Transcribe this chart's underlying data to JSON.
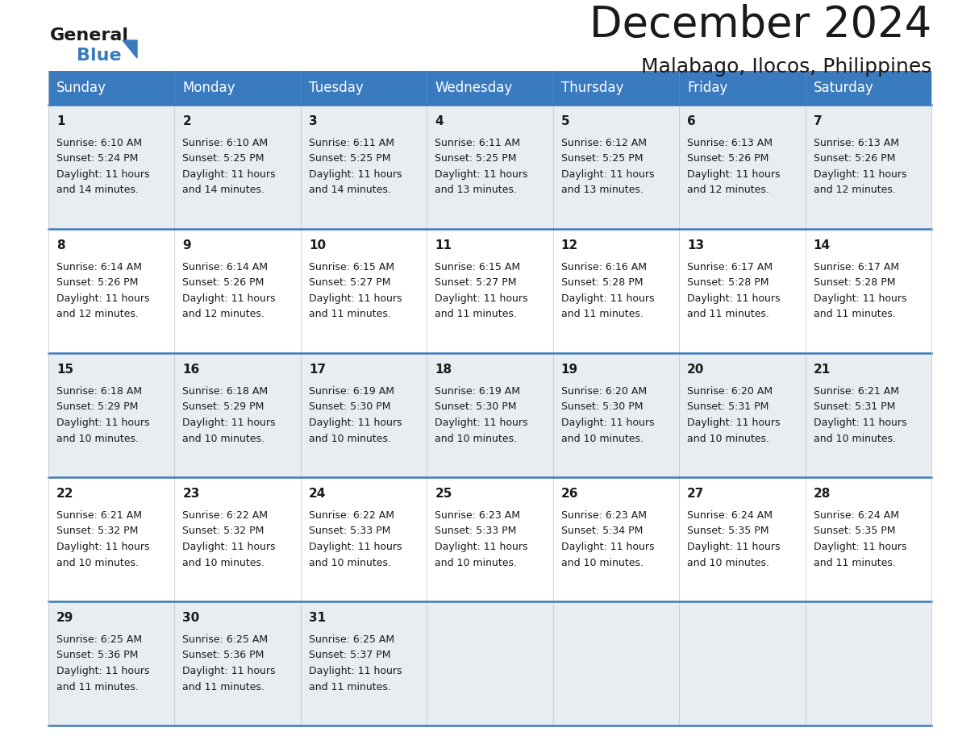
{
  "title": "December 2024",
  "subtitle": "Malabago, Ilocos, Philippines",
  "header_color": "#3a7abf",
  "header_text_color": "#ffffff",
  "days_of_week": [
    "Sunday",
    "Monday",
    "Tuesday",
    "Wednesday",
    "Thursday",
    "Friday",
    "Saturday"
  ],
  "cell_bg_light": "#e8edf2",
  "cell_bg_white": "#ffffff",
  "row_divider_color": "#3a7abf",
  "grid_color": "#c0c0c0",
  "calendar": [
    [
      {
        "day": 1,
        "sunrise": "6:10 AM",
        "sunset": "5:24 PM",
        "daylight_hours": 11,
        "daylight_minutes": 14
      },
      {
        "day": 2,
        "sunrise": "6:10 AM",
        "sunset": "5:25 PM",
        "daylight_hours": 11,
        "daylight_minutes": 14
      },
      {
        "day": 3,
        "sunrise": "6:11 AM",
        "sunset": "5:25 PM",
        "daylight_hours": 11,
        "daylight_minutes": 14
      },
      {
        "day": 4,
        "sunrise": "6:11 AM",
        "sunset": "5:25 PM",
        "daylight_hours": 11,
        "daylight_minutes": 13
      },
      {
        "day": 5,
        "sunrise": "6:12 AM",
        "sunset": "5:25 PM",
        "daylight_hours": 11,
        "daylight_minutes": 13
      },
      {
        "day": 6,
        "sunrise": "6:13 AM",
        "sunset": "5:26 PM",
        "daylight_hours": 11,
        "daylight_minutes": 12
      },
      {
        "day": 7,
        "sunrise": "6:13 AM",
        "sunset": "5:26 PM",
        "daylight_hours": 11,
        "daylight_minutes": 12
      }
    ],
    [
      {
        "day": 8,
        "sunrise": "6:14 AM",
        "sunset": "5:26 PM",
        "daylight_hours": 11,
        "daylight_minutes": 12
      },
      {
        "day": 9,
        "sunrise": "6:14 AM",
        "sunset": "5:26 PM",
        "daylight_hours": 11,
        "daylight_minutes": 12
      },
      {
        "day": 10,
        "sunrise": "6:15 AM",
        "sunset": "5:27 PM",
        "daylight_hours": 11,
        "daylight_minutes": 11
      },
      {
        "day": 11,
        "sunrise": "6:15 AM",
        "sunset": "5:27 PM",
        "daylight_hours": 11,
        "daylight_minutes": 11
      },
      {
        "day": 12,
        "sunrise": "6:16 AM",
        "sunset": "5:28 PM",
        "daylight_hours": 11,
        "daylight_minutes": 11
      },
      {
        "day": 13,
        "sunrise": "6:17 AM",
        "sunset": "5:28 PM",
        "daylight_hours": 11,
        "daylight_minutes": 11
      },
      {
        "day": 14,
        "sunrise": "6:17 AM",
        "sunset": "5:28 PM",
        "daylight_hours": 11,
        "daylight_minutes": 11
      }
    ],
    [
      {
        "day": 15,
        "sunrise": "6:18 AM",
        "sunset": "5:29 PM",
        "daylight_hours": 11,
        "daylight_minutes": 10
      },
      {
        "day": 16,
        "sunrise": "6:18 AM",
        "sunset": "5:29 PM",
        "daylight_hours": 11,
        "daylight_minutes": 10
      },
      {
        "day": 17,
        "sunrise": "6:19 AM",
        "sunset": "5:30 PM",
        "daylight_hours": 11,
        "daylight_minutes": 10
      },
      {
        "day": 18,
        "sunrise": "6:19 AM",
        "sunset": "5:30 PM",
        "daylight_hours": 11,
        "daylight_minutes": 10
      },
      {
        "day": 19,
        "sunrise": "6:20 AM",
        "sunset": "5:30 PM",
        "daylight_hours": 11,
        "daylight_minutes": 10
      },
      {
        "day": 20,
        "sunrise": "6:20 AM",
        "sunset": "5:31 PM",
        "daylight_hours": 11,
        "daylight_minutes": 10
      },
      {
        "day": 21,
        "sunrise": "6:21 AM",
        "sunset": "5:31 PM",
        "daylight_hours": 11,
        "daylight_minutes": 10
      }
    ],
    [
      {
        "day": 22,
        "sunrise": "6:21 AM",
        "sunset": "5:32 PM",
        "daylight_hours": 11,
        "daylight_minutes": 10
      },
      {
        "day": 23,
        "sunrise": "6:22 AM",
        "sunset": "5:32 PM",
        "daylight_hours": 11,
        "daylight_minutes": 10
      },
      {
        "day": 24,
        "sunrise": "6:22 AM",
        "sunset": "5:33 PM",
        "daylight_hours": 11,
        "daylight_minutes": 10
      },
      {
        "day": 25,
        "sunrise": "6:23 AM",
        "sunset": "5:33 PM",
        "daylight_hours": 11,
        "daylight_minutes": 10
      },
      {
        "day": 26,
        "sunrise": "6:23 AM",
        "sunset": "5:34 PM",
        "daylight_hours": 11,
        "daylight_minutes": 10
      },
      {
        "day": 27,
        "sunrise": "6:24 AM",
        "sunset": "5:35 PM",
        "daylight_hours": 11,
        "daylight_minutes": 10
      },
      {
        "day": 28,
        "sunrise": "6:24 AM",
        "sunset": "5:35 PM",
        "daylight_hours": 11,
        "daylight_minutes": 11
      }
    ],
    [
      {
        "day": 29,
        "sunrise": "6:25 AM",
        "sunset": "5:36 PM",
        "daylight_hours": 11,
        "daylight_minutes": 11
      },
      {
        "day": 30,
        "sunrise": "6:25 AM",
        "sunset": "5:36 PM",
        "daylight_hours": 11,
        "daylight_minutes": 11
      },
      {
        "day": 31,
        "sunrise": "6:25 AM",
        "sunset": "5:37 PM",
        "daylight_hours": 11,
        "daylight_minutes": 11
      },
      null,
      null,
      null,
      null
    ]
  ],
  "logo_general_color": "#1a1a1a",
  "logo_blue_color": "#3a7abf",
  "logo_triangle_color": "#3a7abf",
  "title_fontsize": 38,
  "subtitle_fontsize": 18,
  "header_fontsize": 12,
  "day_num_fontsize": 11,
  "cell_text_fontsize": 9
}
